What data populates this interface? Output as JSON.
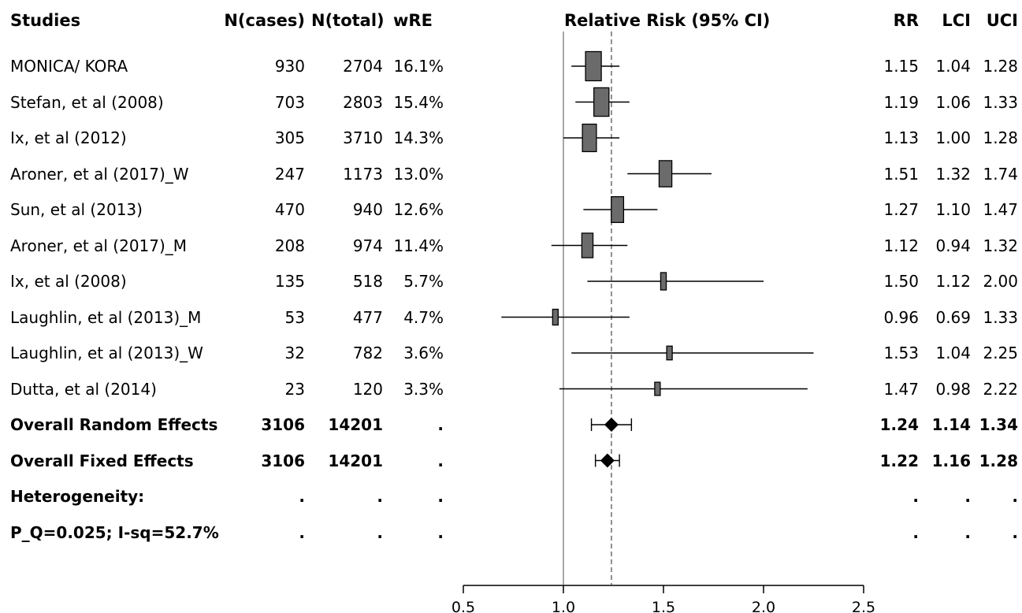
{
  "headers": {
    "studies": "Studies",
    "ncases": "N(cases)",
    "ntotal": "N(total)",
    "wre": "wRE",
    "plot": "Relative Risk (95% CI)",
    "rr": "RR",
    "lci": "LCI",
    "uci": "UCI"
  },
  "rows": [
    {
      "study": "MONICA/ KORA",
      "ncases": "930",
      "ntotal": "2704",
      "wre": "16.1%",
      "rr_text": "1.15",
      "lci_text": "1.04",
      "uci_text": "1.28",
      "bold": false
    },
    {
      "study": "Stefan, et al (2008)",
      "ncases": "703",
      "ntotal": "2803",
      "wre": "15.4%",
      "rr_text": "1.19",
      "lci_text": "1.06",
      "uci_text": "1.33",
      "bold": false
    },
    {
      "study": "Ix, et al (2012)",
      "ncases": "305",
      "ntotal": "3710",
      "wre": "14.3%",
      "rr_text": "1.13",
      "lci_text": "1.00",
      "uci_text": "1.28",
      "bold": false
    },
    {
      "study": "Aroner, et al (2017)_W",
      "ncases": "247",
      "ntotal": "1173",
      "wre": "13.0%",
      "rr_text": "1.51",
      "lci_text": "1.32",
      "uci_text": "1.74",
      "bold": false
    },
    {
      "study": "Sun, et al (2013)",
      "ncases": "470",
      "ntotal": "940",
      "wre": "12.6%",
      "rr_text": "1.27",
      "lci_text": "1.10",
      "uci_text": "1.47",
      "bold": false
    },
    {
      "study": "Aroner, et al (2017)_M",
      "ncases": "208",
      "ntotal": "974",
      "wre": "11.4%",
      "rr_text": "1.12",
      "lci_text": "0.94",
      "uci_text": "1.32",
      "bold": false
    },
    {
      "study": "Ix, et al (2008)",
      "ncases": "135",
      "ntotal": "518",
      "wre": "5.7%",
      "rr_text": "1.50",
      "lci_text": "1.12",
      "uci_text": "2.00",
      "bold": false
    },
    {
      "study": "Laughlin, et al (2013)_M",
      "ncases": "53",
      "ntotal": "477",
      "wre": "4.7%",
      "rr_text": "0.96",
      "lci_text": "0.69",
      "uci_text": "1.33",
      "bold": false
    },
    {
      "study": "Laughlin, et al (2013)_W",
      "ncases": "32",
      "ntotal": "782",
      "wre": "3.6%",
      "rr_text": "1.53",
      "lci_text": "1.04",
      "uci_text": "2.25",
      "bold": false
    },
    {
      "study": "Dutta, et al (2014)",
      "ncases": "23",
      "ntotal": "120",
      "wre": "3.3%",
      "rr_text": "1.47",
      "lci_text": "0.98",
      "uci_text": "2.22",
      "bold": false
    },
    {
      "study": "Overall Random Effects",
      "ncases": "3106",
      "ntotal": "14201",
      "wre": ".",
      "rr_text": "1.24",
      "lci_text": "1.14",
      "uci_text": "1.34",
      "bold": true
    },
    {
      "study": "Overall Fixed Effects",
      "ncases": "3106",
      "ntotal": "14201",
      "wre": ".",
      "rr_text": "1.22",
      "lci_text": "1.16",
      "uci_text": "1.28",
      "bold": true
    },
    {
      "study": "Heterogeneity:",
      "ncases": ".",
      "ntotal": ".",
      "wre": ".",
      "rr_text": ".",
      "lci_text": ".",
      "uci_text": ".",
      "bold": true
    },
    {
      "study": "P_Q=0.025; I-sq=52.7%",
      "ncases": ".",
      "ntotal": ".",
      "wre": ".",
      "rr_text": ".",
      "lci_text": ".",
      "uci_text": ".",
      "bold": true
    }
  ],
  "chart_data": {
    "type": "forest",
    "title": "Relative Risk (95% CI)",
    "xlim": [
      0.5,
      2.5
    ],
    "xticks": [
      0.5,
      1.0,
      1.5,
      2.0,
      2.5
    ],
    "xtick_labels": [
      "0.5",
      "1.0",
      "1.5",
      "2.0",
      "2.5"
    ],
    "null_line": 1.0,
    "pooled_line": 1.24,
    "studies": [
      {
        "name": "MONICA/ KORA",
        "rr": 1.15,
        "lci": 1.04,
        "uci": 1.28,
        "weight": 16.1
      },
      {
        "name": "Stefan, et al (2008)",
        "rr": 1.19,
        "lci": 1.06,
        "uci": 1.33,
        "weight": 15.4
      },
      {
        "name": "Ix, et al (2012)",
        "rr": 1.13,
        "lci": 1.0,
        "uci": 1.28,
        "weight": 14.3
      },
      {
        "name": "Aroner, et al (2017)_W",
        "rr": 1.51,
        "lci": 1.32,
        "uci": 1.74,
        "weight": 13.0
      },
      {
        "name": "Sun, et al (2013)",
        "rr": 1.27,
        "lci": 1.1,
        "uci": 1.47,
        "weight": 12.6
      },
      {
        "name": "Aroner, et al (2017)_M",
        "rr": 1.12,
        "lci": 0.94,
        "uci": 1.32,
        "weight": 11.4
      },
      {
        "name": "Ix, et al (2008)",
        "rr": 1.5,
        "lci": 1.12,
        "uci": 2.0,
        "weight": 5.7
      },
      {
        "name": "Laughlin, et al (2013)_M",
        "rr": 0.96,
        "lci": 0.69,
        "uci": 1.33,
        "weight": 4.7
      },
      {
        "name": "Laughlin, et al (2013)_W",
        "rr": 1.53,
        "lci": 1.04,
        "uci": 2.25,
        "weight": 3.6
      },
      {
        "name": "Dutta, et al (2014)",
        "rr": 1.47,
        "lci": 0.98,
        "uci": 2.22,
        "weight": 3.3
      }
    ],
    "summaries": [
      {
        "name": "Overall Random Effects",
        "rr": 1.24,
        "lci": 1.14,
        "uci": 1.34
      },
      {
        "name": "Overall Fixed Effects",
        "rr": 1.22,
        "lci": 1.16,
        "uci": 1.28
      }
    ],
    "colors": {
      "box": "#6b6b6b",
      "line": "#000000",
      "null_line": "#8c8c8c",
      "pooled_line": "#6b6b6b"
    }
  }
}
